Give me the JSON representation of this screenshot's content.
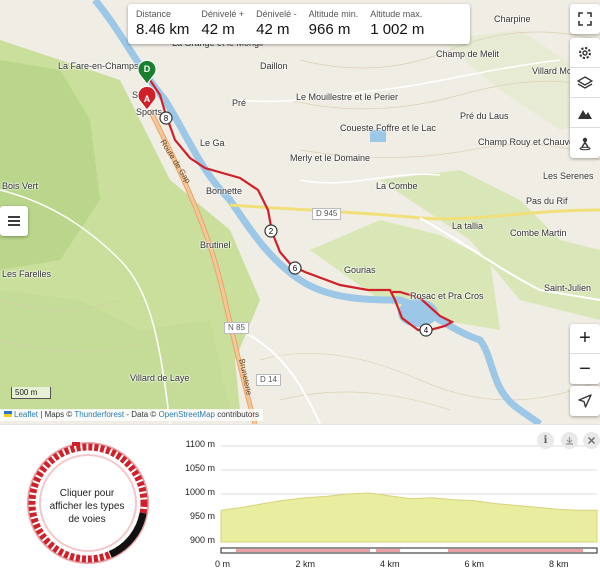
{
  "stats": [
    {
      "label": "Distance",
      "value": "8.46 km"
    },
    {
      "label": "Dénivelé +",
      "value": "42 m"
    },
    {
      "label": "Dénivelé -",
      "value": "42 m"
    },
    {
      "label": "Altitude min.",
      "value": "966 m"
    },
    {
      "label": "Altitude max.",
      "value": "1 002 m"
    }
  ],
  "places": {
    "la_fare": "La Fare-en-Champsaur",
    "la_grange": "La Grange et le Mongil",
    "daillon": "Daillon",
    "pre": "Pré",
    "mouillestre": "Le Mouillestre et le Perier",
    "coueste": "Coueste Foffre et le Lac",
    "le_ga": "Le Ga",
    "merly": "Merly et le Domaine",
    "la_combe": "La Combe",
    "bonnette": "Bonnette",
    "bois_vert": "Bois Vert",
    "brutinel": "Brutinel",
    "les_farelles": "Les Farelles",
    "gourias": "Gourias",
    "rosac": "Rosac et Pra Cros",
    "la_tallia": "La tallia",
    "charpine": "Charpine",
    "champ_de_melit": "Champ de Melit",
    "villard_mounier": "Villard Mounier",
    "pre_du_laus": "Pré du Laus",
    "champ_rouy": "Champ Rouy et Chauvet",
    "les_serenes": "Les Serenes",
    "pas_du_rif": "Pas du Rif",
    "combe_martin": "Combe Martin",
    "saint_julien": "Saint-Julien",
    "villard_de_laye": "Villard de Laye",
    "sports": "Sports",
    "s": "S"
  },
  "roads": {
    "d945": "D 945",
    "n85": "N 85",
    "d14": "D 14",
    "route_gap": "Route de Gap",
    "bruneterie": "Bruneterie"
  },
  "markers": {
    "depart": "D",
    "arrivee": "A",
    "km2": "2",
    "km4": "4",
    "km6": "6",
    "km8": "8"
  },
  "scale": "500 m",
  "attribution": {
    "leaflet": "Leaflet",
    "sep1": "| Maps ©",
    "thunderforest": "Thunderforest",
    "sep2": "- Data ©",
    "osm": "OpenStreetMap",
    "suffix": "contributors"
  },
  "icons": {
    "fullscreen": "expand-icon",
    "settings": "gear-icon",
    "layers": "layers-icon",
    "terrain": "mountain-icon",
    "pin": "person-pin-icon",
    "zoom_in": "+",
    "zoom_out": "−",
    "locate": "navigation-arrow-icon",
    "menu": "hamburger-icon"
  },
  "ring_text": "Cliquer pour afficher les types de voies",
  "colors": {
    "route": "#d0212b",
    "start": "#1a7f2e",
    "profile_fill": "#e9eda0",
    "profile_line": "#d8d27a"
  },
  "chart_data": {
    "type": "area",
    "x_unit": "km",
    "y_unit": "m",
    "x": [
      0,
      0.5,
      1,
      1.5,
      2,
      2.5,
      3,
      3.5,
      4,
      4.5,
      5,
      5.5,
      6,
      6.5,
      7,
      7.5,
      8,
      8.46
    ],
    "y": [
      966,
      972,
      980,
      987,
      992,
      995,
      1000,
      1002,
      996,
      990,
      992,
      988,
      986,
      980,
      976,
      972,
      968,
      966
    ],
    "yticks": [
      "1100 m",
      "1050 m",
      "1000 m",
      "950 m",
      "900 m"
    ],
    "ytick_values": [
      1100,
      1050,
      1000,
      950,
      900
    ],
    "xticks": [
      "0 m",
      "2 km",
      "4 km",
      "6 km",
      "8 km"
    ],
    "xtick_values": [
      0,
      2,
      4,
      6,
      8
    ],
    "ylim": [
      900,
      1100
    ],
    "xlim": [
      0,
      8.9
    ]
  }
}
